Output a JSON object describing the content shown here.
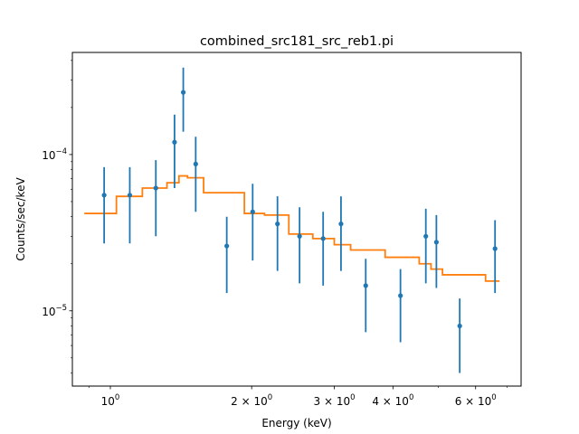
{
  "chart_data": {
    "type": "scatter",
    "title": "combined_src181_src_reb1.pi",
    "xlabel": "Energy (keV)",
    "ylabel": "Counts/sec/keV",
    "xscale": "log",
    "yscale": "log",
    "xlim": [
      0.83,
      7.5
    ],
    "ylim": [
      3.3e-06,
      0.00045
    ],
    "grid": false,
    "x_major_ticks": [
      {
        "value": 1,
        "base": "10",
        "exp": "0"
      },
      {
        "value": 2,
        "base": "2 × 10",
        "exp": "0"
      },
      {
        "value": 3,
        "base": "3 × 10",
        "exp": "0"
      },
      {
        "value": 4,
        "base": "4 × 10",
        "exp": "0"
      },
      {
        "value": 6,
        "base": "6 × 10",
        "exp": "0"
      }
    ],
    "x_minor_ticks": [
      0.9,
      5,
      7
    ],
    "y_major_ticks": [
      {
        "value": 1e-05,
        "base": "10",
        "exp": "−5"
      },
      {
        "value": 0.0001,
        "base": "10",
        "exp": "−4"
      }
    ],
    "y_minor_ticks": [
      4e-06,
      5e-06,
      6e-06,
      7e-06,
      8e-06,
      9e-06,
      2e-05,
      3e-05,
      4e-05,
      5e-05,
      6e-05,
      7e-05,
      8e-05,
      9e-05,
      0.0002,
      0.0003,
      0.0004
    ],
    "series": [
      {
        "kind": "points_with_errorbars",
        "color": "#1f77b4",
        "points": [
          {
            "x": 0.97,
            "y": 5.5e-05,
            "ylo": 2.7e-05,
            "yhi": 8.3e-05
          },
          {
            "x": 1.1,
            "y": 5.5e-05,
            "ylo": 2.7e-05,
            "yhi": 8.3e-05
          },
          {
            "x": 1.25,
            "y": 6.1e-05,
            "ylo": 3e-05,
            "yhi": 9.2e-05
          },
          {
            "x": 1.37,
            "y": 0.00012,
            "ylo": 6.1e-05,
            "yhi": 0.00018
          },
          {
            "x": 1.43,
            "y": 0.00025,
            "ylo": 0.00014,
            "yhi": 0.00036
          },
          {
            "x": 1.52,
            "y": 8.7e-05,
            "ylo": 4.3e-05,
            "yhi": 0.00013
          },
          {
            "x": 1.77,
            "y": 2.6e-05,
            "ylo": 1.3e-05,
            "yhi": 4e-05
          },
          {
            "x": 2.01,
            "y": 4.3e-05,
            "ylo": 2.1e-05,
            "yhi": 6.5e-05
          },
          {
            "x": 2.27,
            "y": 3.6e-05,
            "ylo": 1.8e-05,
            "yhi": 5.4e-05
          },
          {
            "x": 2.53,
            "y": 3e-05,
            "ylo": 1.5e-05,
            "yhi": 4.6e-05
          },
          {
            "x": 2.84,
            "y": 2.9e-05,
            "ylo": 1.45e-05,
            "yhi": 4.3e-05
          },
          {
            "x": 3.1,
            "y": 3.6e-05,
            "ylo": 1.8e-05,
            "yhi": 5.4e-05
          },
          {
            "x": 3.5,
            "y": 1.45e-05,
            "ylo": 7.3e-06,
            "yhi": 2.15e-05
          },
          {
            "x": 4.15,
            "y": 1.25e-05,
            "ylo": 6.3e-06,
            "yhi": 1.85e-05
          },
          {
            "x": 4.7,
            "y": 3e-05,
            "ylo": 1.5e-05,
            "yhi": 4.5e-05
          },
          {
            "x": 4.95,
            "y": 2.75e-05,
            "ylo": 1.4e-05,
            "yhi": 4.1e-05
          },
          {
            "x": 5.55,
            "y": 8e-06,
            "ylo": 4e-06,
            "yhi": 1.2e-05
          },
          {
            "x": 6.6,
            "y": 2.5e-05,
            "ylo": 1.3e-05,
            "yhi": 3.8e-05
          }
        ]
      },
      {
        "kind": "step_model",
        "color": "#ff7f0e",
        "steps": [
          {
            "x0": 0.88,
            "x1": 1.03,
            "y": 4.2e-05
          },
          {
            "x0": 1.03,
            "x1": 1.17,
            "y": 5.4e-05
          },
          {
            "x0": 1.17,
            "x1": 1.32,
            "y": 6.1e-05
          },
          {
            "x0": 1.32,
            "x1": 1.4,
            "y": 6.6e-05
          },
          {
            "x0": 1.4,
            "x1": 1.46,
            "y": 7.3e-05
          },
          {
            "x0": 1.46,
            "x1": 1.58,
            "y": 7.1e-05
          },
          {
            "x0": 1.58,
            "x1": 1.93,
            "y": 5.7e-05
          },
          {
            "x0": 1.93,
            "x1": 2.13,
            "y": 4.2e-05
          },
          {
            "x0": 2.13,
            "x1": 2.4,
            "y": 4.1e-05
          },
          {
            "x0": 2.4,
            "x1": 2.7,
            "y": 3.1e-05
          },
          {
            "x0": 2.7,
            "x1": 3.0,
            "y": 2.9e-05
          },
          {
            "x0": 3.0,
            "x1": 3.25,
            "y": 2.65e-05
          },
          {
            "x0": 3.25,
            "x1": 3.85,
            "y": 2.45e-05
          },
          {
            "x0": 3.85,
            "x1": 4.55,
            "y": 2.2e-05
          },
          {
            "x0": 4.55,
            "x1": 4.82,
            "y": 2e-05
          },
          {
            "x0": 4.82,
            "x1": 5.1,
            "y": 1.85e-05
          },
          {
            "x0": 5.1,
            "x1": 6.3,
            "y": 1.7e-05
          },
          {
            "x0": 6.3,
            "x1": 6.75,
            "y": 1.55e-05
          }
        ]
      }
    ]
  }
}
